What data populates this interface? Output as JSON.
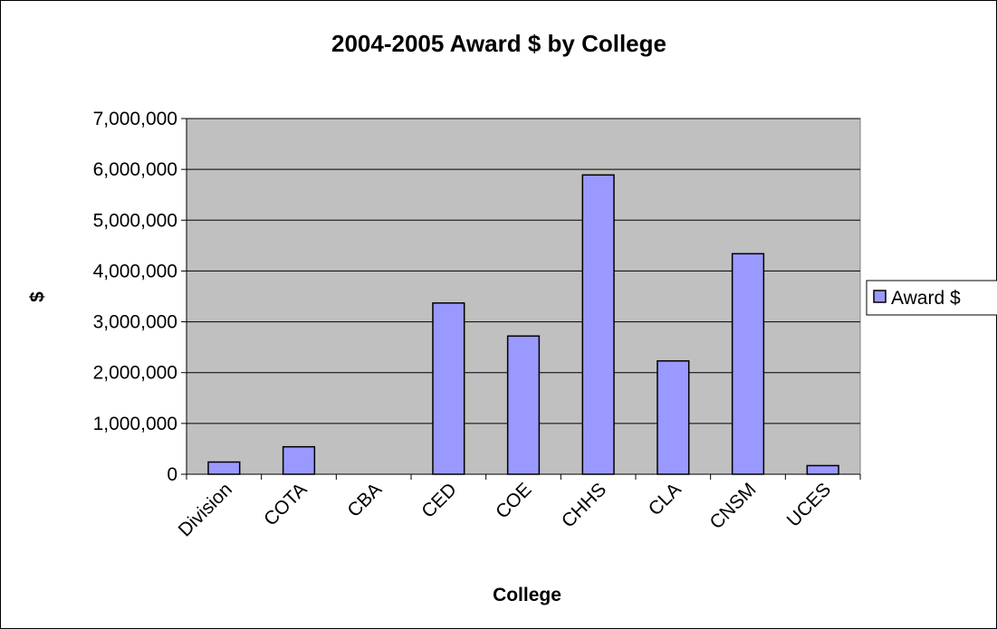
{
  "chart_data": {
    "type": "bar",
    "title": "2004-2005 Award $ by College",
    "xlabel": "College",
    "ylabel": "$",
    "categories": [
      "Division",
      "COTA",
      "CBA",
      "CED",
      "COE",
      "CHHS",
      "CLA",
      "CNSM",
      "UCES"
    ],
    "series": [
      {
        "name": "Award $",
        "values": [
          240000,
          540000,
          0,
          3370000,
          2720000,
          5890000,
          2230000,
          4340000,
          170000
        ]
      }
    ],
    "ylim": [
      0,
      7000000
    ],
    "ytick_labels": [
      "0",
      "1,000,000",
      "2,000,000",
      "3,000,000",
      "4,000,000",
      "5,000,000",
      "6,000,000",
      "7,000,000"
    ],
    "grid": true,
    "legend_position": "right",
    "colors": {
      "bar": "#9999ff",
      "plot_background": "#c0c0c0"
    }
  }
}
